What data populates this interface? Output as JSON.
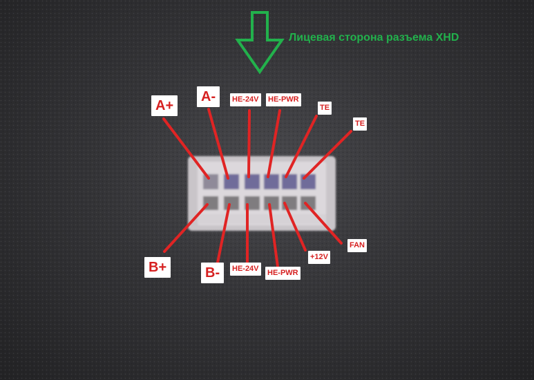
{
  "title": "Лицевая сторона разъема XHD",
  "labels": {
    "a_plus": "A+",
    "a_minus": "A-",
    "he24_top": "HE-24V",
    "hepwr_top": "HE-PWR",
    "te1": "TE",
    "te2": "TE",
    "b_plus": "B+",
    "b_minus": "B-",
    "he24_bottom": "HE-24V",
    "hepwr_bottom": "HE-PWR",
    "plus12": "+12V",
    "fan": "FAN"
  },
  "colors": {
    "arrow": "#22b14c",
    "pointer": "#e02424",
    "label_text": "#d62020",
    "connector": "#cdc9cc"
  }
}
